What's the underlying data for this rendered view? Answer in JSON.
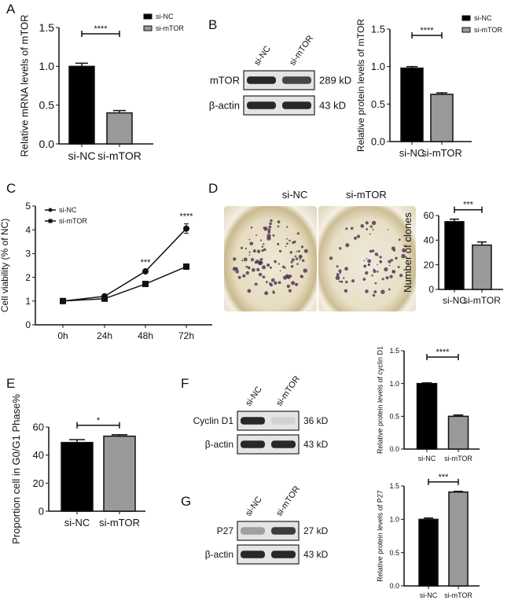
{
  "panels": [
    "A",
    "B",
    "C",
    "D",
    "E",
    "F",
    "G"
  ],
  "legend": {
    "si_nc": "si-NC",
    "si_mtor": "si-mTOR"
  },
  "colors": {
    "si_nc": "#000000",
    "si_mtor": "#999999"
  },
  "blots": {
    "B": {
      "lanes": [
        "si-NC",
        "si-mTOR"
      ],
      "rows": [
        {
          "name": "mTOR",
          "size": "289 kD",
          "intensity": [
            0.95,
            0.8
          ]
        },
        {
          "name": "β-actin",
          "size": "43 kD",
          "intensity": [
            0.95,
            0.95
          ]
        }
      ]
    },
    "F": {
      "lanes": [
        "si-NC",
        "si-mTOR"
      ],
      "rows": [
        {
          "name": "Cyclin D1",
          "size": "36 kD",
          "intensity": [
            0.95,
            0.1
          ]
        },
        {
          "name": "β-actin",
          "size": "43 kD",
          "intensity": [
            0.95,
            0.95
          ]
        }
      ]
    },
    "G": {
      "lanes": [
        "si-NC",
        "si-mTOR"
      ],
      "rows": [
        {
          "name": "P27",
          "size": "27 kD",
          "intensity": [
            0.35,
            0.85
          ]
        },
        {
          "name": "β-actin",
          "size": "43 kD",
          "intensity": [
            0.95,
            0.95
          ]
        }
      ]
    }
  },
  "colony": {
    "labels": [
      "si-NC",
      "si-mTOR"
    ]
  },
  "chart_data": [
    {
      "panel": "A",
      "type": "bar",
      "categories": [
        "si-NC",
        "si-mTOR"
      ],
      "values": [
        1.0,
        0.4
      ],
      "errors": [
        0.04,
        0.03
      ],
      "ylabel": "Relative mRNA levels of mTOR",
      "ylim": [
        0,
        1.5
      ],
      "yticks": [
        "0.0",
        "0.5",
        "1.0",
        "1.5"
      ],
      "significance": "****",
      "legend": [
        "si-NC",
        "si-mTOR"
      ],
      "legend_placement": "top-right"
    },
    {
      "panel": "B",
      "type": "bar",
      "categories": [
        "si-NC",
        "si-mTOR"
      ],
      "values": [
        0.98,
        0.63
      ],
      "errors": [
        0.02,
        0.02
      ],
      "ylabel": "Relative protein levels of mTOR",
      "ylim": [
        0,
        1.5
      ],
      "yticks": [
        "0.0",
        "0.5",
        "1.0",
        "1.5"
      ],
      "significance": "****",
      "legend": [
        "si-NC",
        "si-mTOR"
      ],
      "legend_placement": "top-right"
    },
    {
      "panel": "C",
      "type": "line",
      "categories": [
        "0h",
        "24h",
        "48h",
        "72h"
      ],
      "series": [
        {
          "name": "si-NC",
          "values": [
            1.0,
            1.2,
            2.25,
            4.05
          ],
          "errors": [
            0.03,
            0.04,
            0.06,
            0.2
          ],
          "marker": "circle"
        },
        {
          "name": "si-mTOR",
          "values": [
            1.0,
            1.1,
            1.72,
            2.45
          ],
          "errors": [
            0.03,
            0.03,
            0.05,
            0.05
          ],
          "marker": "square"
        }
      ],
      "ylabel": "Cell viability (% of NC)",
      "ylim": [
        0,
        5
      ],
      "yticks": [
        "0",
        "1",
        "2",
        "3",
        "4",
        "5"
      ],
      "annotations": [
        {
          "x": "48h",
          "text": "***"
        },
        {
          "x": "72h",
          "text": "****"
        }
      ],
      "legend_placement": "top-left"
    },
    {
      "panel": "D",
      "type": "bar",
      "categories": [
        "si-NC",
        "si-mTOR"
      ],
      "values": [
        55,
        36
      ],
      "errors": [
        2,
        2.5
      ],
      "ylabel": "Number of clones",
      "ylim": [
        0,
        60
      ],
      "yticks": [
        "0",
        "20",
        "40",
        "60"
      ],
      "significance": "***"
    },
    {
      "panel": "E",
      "type": "bar",
      "categories": [
        "si-NC",
        "si-mTOR"
      ],
      "values": [
        49,
        53.5
      ],
      "errors": [
        2,
        1
      ],
      "ylabel": "Proportion cell in G0/G1 Phase%",
      "ylim": [
        0,
        60
      ],
      "yticks": [
        "0",
        "20",
        "40",
        "60"
      ],
      "significance": "*"
    },
    {
      "panel": "F",
      "type": "bar",
      "categories": [
        "si-NC",
        "si-mTOR"
      ],
      "values": [
        1.0,
        0.5
      ],
      "errors": [
        0.01,
        0.02
      ],
      "ylabel": "Relative protein levels of cyclin D1",
      "ylim": [
        0,
        1.5
      ],
      "yticks": [
        "0.0",
        "0.5",
        "1.0",
        "1.5"
      ],
      "significance": "****"
    },
    {
      "panel": "G",
      "type": "bar",
      "categories": [
        "si-NC",
        "si-mTOR"
      ],
      "values": [
        1.0,
        1.41
      ],
      "errors": [
        0.02,
        0.01
      ],
      "ylabel": "Relative protein levels of P27",
      "ylim": [
        0,
        1.5
      ],
      "yticks": [
        "0.0",
        "0.5",
        "1.0",
        "1.5"
      ],
      "significance": "***"
    }
  ]
}
